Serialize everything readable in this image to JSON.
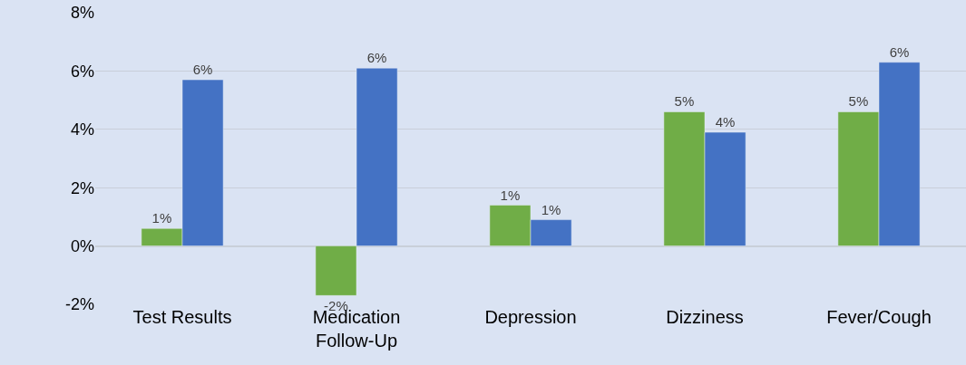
{
  "chart_data": {
    "type": "bar",
    "categories": [
      "Test Results",
      "Medication\nFollow-Up",
      "Depression",
      "Dizziness",
      "Fever/Cough"
    ],
    "series": [
      {
        "color": "#70ad47",
        "values": [
          0.6,
          -1.7,
          1.4,
          4.6,
          4.6
        ],
        "value_labels": [
          "1%",
          "-2%",
          "1%",
          "5%",
          "5%"
        ]
      },
      {
        "color": "#4472c4",
        "values": [
          5.7,
          6.1,
          0.9,
          3.9,
          6.3
        ],
        "value_labels": [
          "6%",
          "6%",
          "1%",
          "4%",
          "6%"
        ]
      }
    ],
    "ylim": [
      -2,
      8
    ],
    "yticks": [
      {
        "value": -2,
        "label": "-2%"
      },
      {
        "value": 0,
        "label": "0%"
      },
      {
        "value": 2,
        "label": "2%"
      },
      {
        "value": 4,
        "label": "4%"
      },
      {
        "value": 6,
        "label": "6%"
      },
      {
        "value": 8,
        "label": "8%"
      }
    ],
    "grid": "y"
  }
}
